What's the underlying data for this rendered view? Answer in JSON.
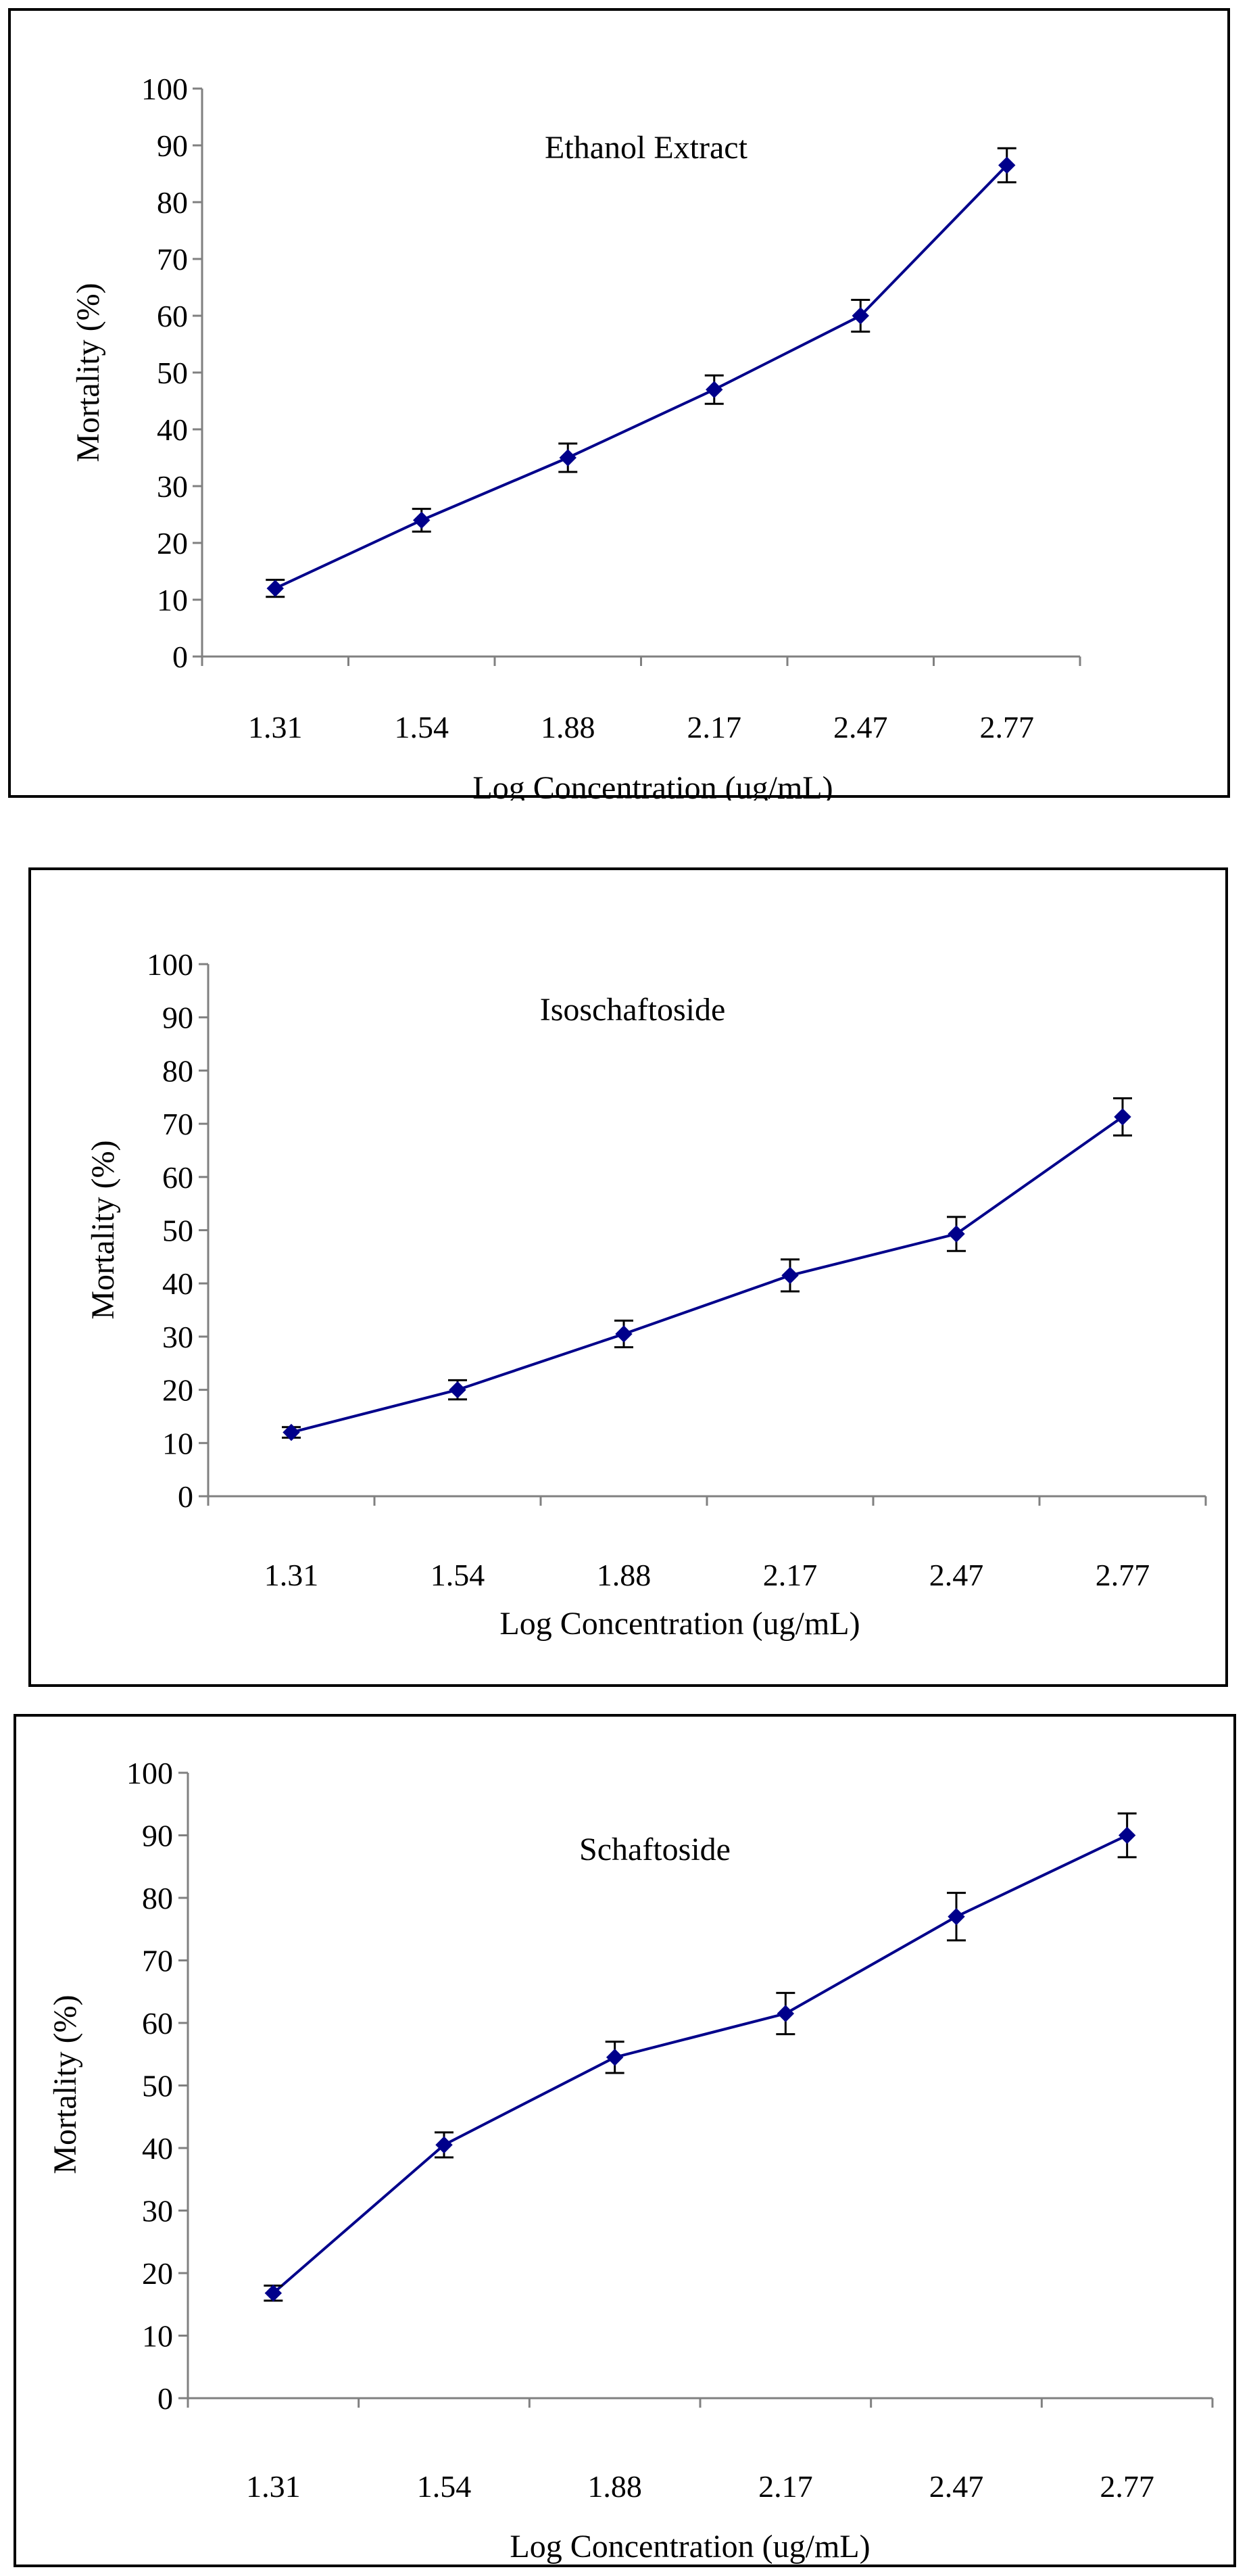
{
  "chart_data": [
    {
      "type": "line",
      "title": "Ethanol Extract",
      "xlabel": "Log Concentration (ug/mL)",
      "ylabel": "Mortality (%)",
      "categories": [
        "1.31",
        "1.54",
        "1.88",
        "2.17",
        "2.47",
        "2.77"
      ],
      "ylim": [
        0,
        100
      ],
      "yticks": [
        "0",
        "10",
        "20",
        "30",
        "40",
        "50",
        "60",
        "70",
        "80",
        "90",
        "100"
      ],
      "series": [
        {
          "values": [
            12,
            24,
            35,
            47,
            60,
            86.5
          ],
          "errors": [
            1.5,
            2,
            2.5,
            2.5,
            2.8,
            3
          ]
        }
      ],
      "colors": {
        "line": "#00008B",
        "marker": "#00008B",
        "axis": "#808080",
        "errorbar": "#000000"
      },
      "grid": false,
      "legend": "none"
    },
    {
      "type": "line",
      "title": "Isoschaftoside",
      "xlabel": "Log Concentration (ug/mL)",
      "ylabel": "Mortality (%)",
      "categories": [
        "1.31",
        "1.54",
        "1.88",
        "2.17",
        "2.47",
        "2.77"
      ],
      "ylim": [
        0,
        100
      ],
      "yticks": [
        "0",
        "10",
        "20",
        "30",
        "40",
        "50",
        "60",
        "70",
        "80",
        "90",
        "100"
      ],
      "series": [
        {
          "values": [
            12,
            20,
            30.5,
            41.5,
            49.3,
            71.3
          ],
          "errors": [
            1,
            1.8,
            2.5,
            3,
            3.2,
            3.5
          ]
        }
      ],
      "colors": {
        "line": "#00008B",
        "marker": "#00008B",
        "axis": "#808080",
        "errorbar": "#000000"
      },
      "grid": false,
      "legend": "none"
    },
    {
      "type": "line",
      "title": "Schaftoside",
      "xlabel": "Log Concentration (ug/mL)",
      "ylabel": "Mortality (%)",
      "categories": [
        "1.31",
        "1.54",
        "1.88",
        "2.17",
        "2.47",
        "2.77"
      ],
      "ylim": [
        0,
        100
      ],
      "yticks": [
        "0",
        "10",
        "20",
        "30",
        "40",
        "50",
        "60",
        "70",
        "80",
        "90",
        "100"
      ],
      "series": [
        {
          "values": [
            16.8,
            40.5,
            54.5,
            61.5,
            77,
            90
          ],
          "errors": [
            1.2,
            2,
            2.5,
            3.3,
            3.8,
            3.5
          ]
        }
      ],
      "colors": {
        "line": "#00008B",
        "marker": "#00008B",
        "axis": "#808080",
        "errorbar": "#000000"
      },
      "grid": false,
      "legend": "none"
    }
  ]
}
